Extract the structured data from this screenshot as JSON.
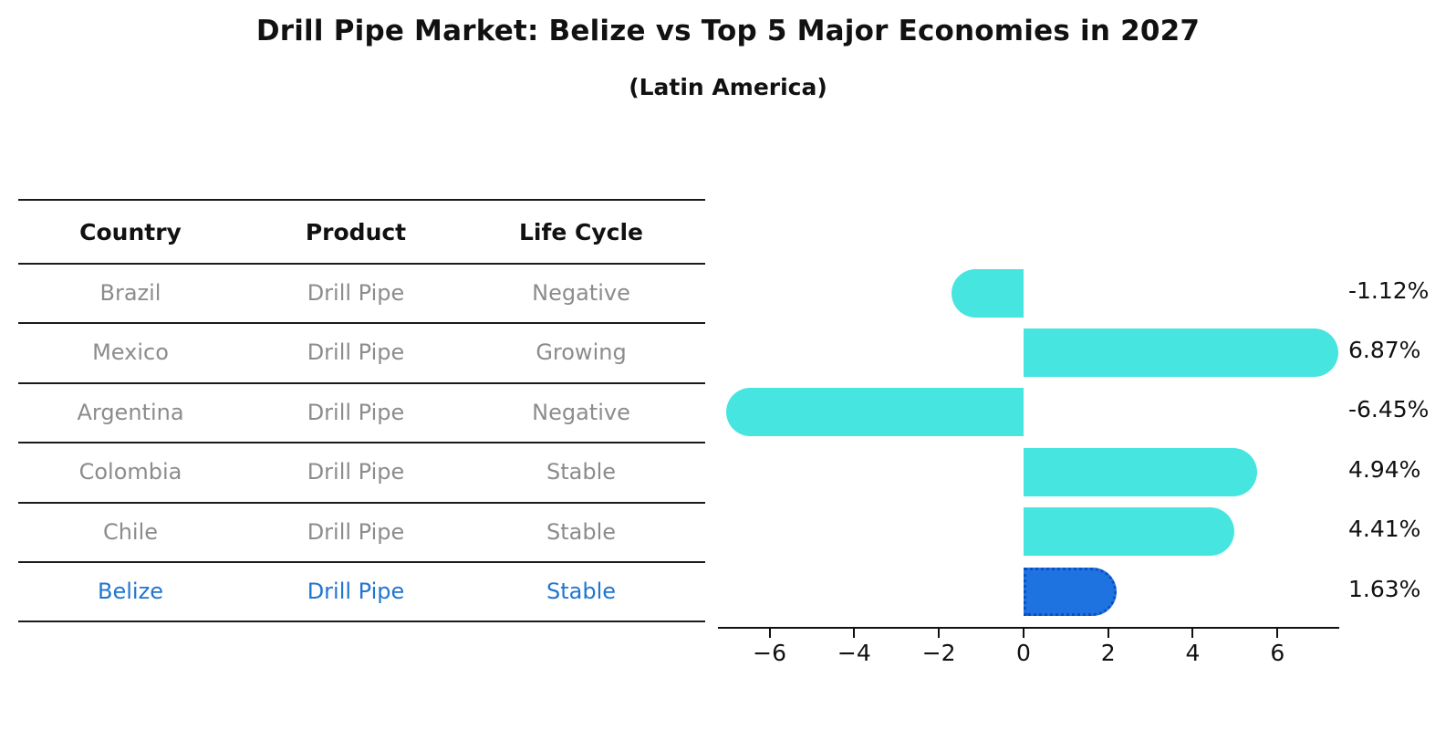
{
  "title": "Drill Pipe Market: Belize vs Top 5 Major Economies in 2027",
  "subtitle": "(Latin America)",
  "table": {
    "headers": [
      "Country",
      "Product",
      "Life Cycle"
    ],
    "rows": [
      {
        "country": "Brazil",
        "product": "Drill Pipe",
        "life_cycle": "Negative",
        "highlighted": false
      },
      {
        "country": "Mexico",
        "product": "Drill Pipe",
        "life_cycle": "Growing",
        "highlighted": false
      },
      {
        "country": "Argentina",
        "product": "Drill Pipe",
        "life_cycle": "Negative",
        "highlighted": false
      },
      {
        "country": "Colombia",
        "product": "Drill Pipe",
        "life_cycle": "Stable",
        "highlighted": false
      },
      {
        "country": "Chile",
        "product": "Drill Pipe",
        "life_cycle": "Stable",
        "highlighted": false
      },
      {
        "country": "Belize",
        "product": "Drill Pipe",
        "life_cycle": "Stable",
        "highlighted": true
      }
    ]
  },
  "chart_data": {
    "type": "bar",
    "orientation": "horizontal",
    "title": "Drill Pipe Market: Belize vs Top 5 Major Economies in 2027",
    "subtitle": "(Latin America)",
    "categories": [
      "Brazil",
      "Mexico",
      "Argentina",
      "Colombia",
      "Chile",
      "Belize"
    ],
    "values": [
      -1.12,
      6.87,
      -6.45,
      4.94,
      4.41,
      1.63
    ],
    "value_labels": [
      "-1.12%",
      "6.87%",
      "-6.45%",
      "4.94%",
      "4.41%",
      "1.63%"
    ],
    "unit": "percent",
    "xlim": [
      -7.22,
      7.46
    ],
    "x_ticks": [
      -6,
      -4,
      -2,
      0,
      2,
      4,
      6
    ],
    "x_tick_labels": [
      "−6",
      "−4",
      "−2",
      "0",
      "2",
      "4",
      "6"
    ],
    "grid": false,
    "legend": false,
    "bar_color": "#46e5e0",
    "highlight_color": "#1e73e1",
    "highlight_border_color": "#0b50c5",
    "highlight_index": 5,
    "highlight_category": "Belize"
  },
  "colors": {
    "background": "#ffffff",
    "title_text": "#111111",
    "table_text": "#8c8c8c",
    "header_text": "#111111",
    "highlight_text": "#2176cf",
    "axis": "#111111"
  }
}
